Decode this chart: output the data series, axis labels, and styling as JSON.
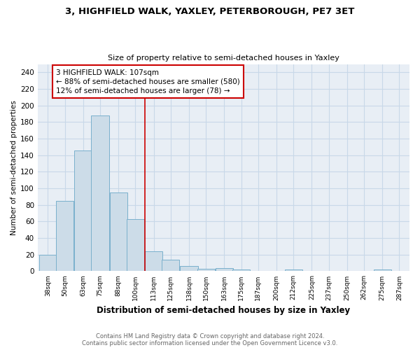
{
  "title_line1": "3, HIGHFIELD WALK, YAXLEY, PETERBOROUGH, PE7 3ET",
  "title_line2": "Size of property relative to semi-detached houses in Yaxley",
  "xlabel": "Distribution of semi-detached houses by size in Yaxley",
  "ylabel": "Number of semi-detached properties",
  "bins": [
    38,
    50,
    63,
    75,
    88,
    100,
    113,
    125,
    138,
    150,
    163,
    175,
    187,
    200,
    212,
    225,
    237,
    250,
    262,
    275,
    287
  ],
  "heights": [
    20,
    85,
    146,
    188,
    95,
    63,
    24,
    14,
    6,
    3,
    4,
    2,
    0,
    0,
    2,
    0,
    0,
    0,
    0,
    2
  ],
  "bar_color": "#ccdce8",
  "bar_edge_color": "#7ab0cc",
  "red_line_x": 107,
  "annotation_text": "3 HIGHFIELD WALK: 107sqm\n← 88% of semi-detached houses are smaller (580)\n12% of semi-detached houses are larger (78) →",
  "annotation_box_color": "#ffffff",
  "annotation_box_edge": "#cc0000",
  "red_line_color": "#cc0000",
  "ylim": [
    0,
    250
  ],
  "yticks": [
    0,
    20,
    40,
    60,
    80,
    100,
    120,
    140,
    160,
    180,
    200,
    220,
    240
  ],
  "footer_line1": "Contains HM Land Registry data © Crown copyright and database right 2024.",
  "footer_line2": "Contains public sector information licensed under the Open Government Licence v3.0.",
  "grid_color": "#c8d8e8",
  "bg_color": "#e8eef5"
}
